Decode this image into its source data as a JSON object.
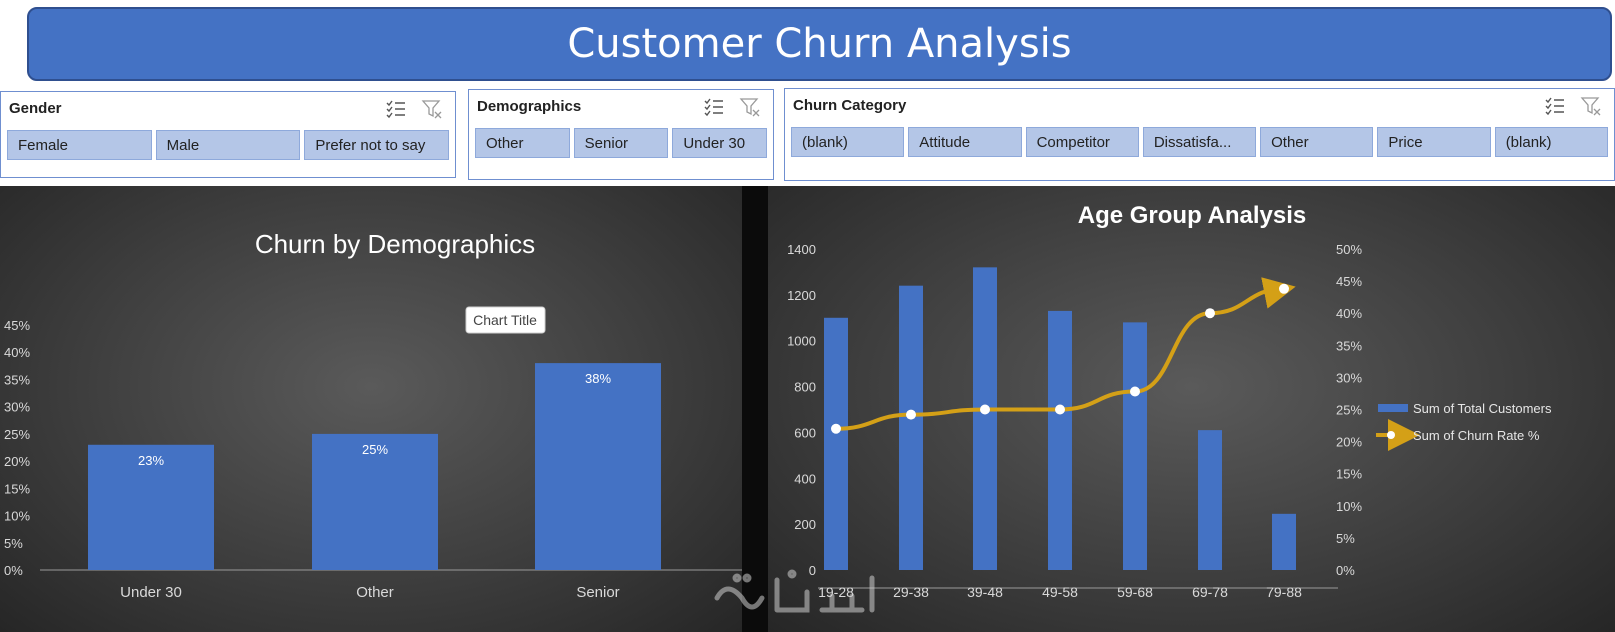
{
  "header": {
    "title": "Customer Churn Analysis"
  },
  "slicers": [
    {
      "id": "gender",
      "title": "Gender",
      "items": [
        "Female",
        "Male",
        "Prefer not to say"
      ]
    },
    {
      "id": "demographics",
      "title": "Demographics",
      "items": [
        "Other",
        "Senior",
        "Under 30"
      ]
    },
    {
      "id": "churn_category",
      "title": "Churn Category",
      "items": [
        "(blank)",
        "Attitude",
        "Competitor",
        "Dissatisfa...",
        "Other",
        "Price",
        "(blank)"
      ]
    }
  ],
  "tooltip": {
    "text": "Chart Title"
  },
  "chart_data": [
    {
      "type": "bar",
      "title": "Churn by Demographics",
      "categories": [
        "Under 30",
        "Other",
        "Senior"
      ],
      "values": [
        23,
        25,
        38
      ],
      "data_labels": [
        "23%",
        "25%",
        "38%"
      ],
      "ylim": [
        0,
        45
      ],
      "y_ticks": [
        "0%",
        "5%",
        "10%",
        "15%",
        "20%",
        "25%",
        "30%",
        "35%",
        "40%",
        "45%"
      ],
      "grid": false,
      "colors": {
        "bar": "#4472c4"
      }
    },
    {
      "type": "bar+line",
      "title": "Age Group Analysis",
      "categories": [
        "19-28",
        "29-38",
        "39-48",
        "49-58",
        "59-68",
        "69-78",
        "79-88"
      ],
      "series": [
        {
          "name": "Sum of Total Customers",
          "type": "bar",
          "axis": "left",
          "values": [
            1100,
            1240,
            1320,
            1130,
            1080,
            610,
            245
          ]
        },
        {
          "name": "Sum of Churn Rate %",
          "type": "line",
          "axis": "right",
          "values": [
            22,
            24.2,
            25,
            25,
            27.8,
            40,
            43.8
          ]
        }
      ],
      "y_left": {
        "ylim": [
          0,
          1400
        ],
        "ticks": [
          "0",
          "200",
          "400",
          "600",
          "800",
          "1000",
          "1200",
          "1400"
        ]
      },
      "y_right": {
        "ylim": [
          0,
          50
        ],
        "ticks": [
          "0%",
          "5%",
          "10%",
          "15%",
          "20%",
          "25%",
          "30%",
          "35%",
          "40%",
          "45%",
          "50%"
        ]
      },
      "legend": "right",
      "grid": false,
      "colors": {
        "bar": "#4472c4",
        "line": "#d4a017"
      }
    }
  ]
}
